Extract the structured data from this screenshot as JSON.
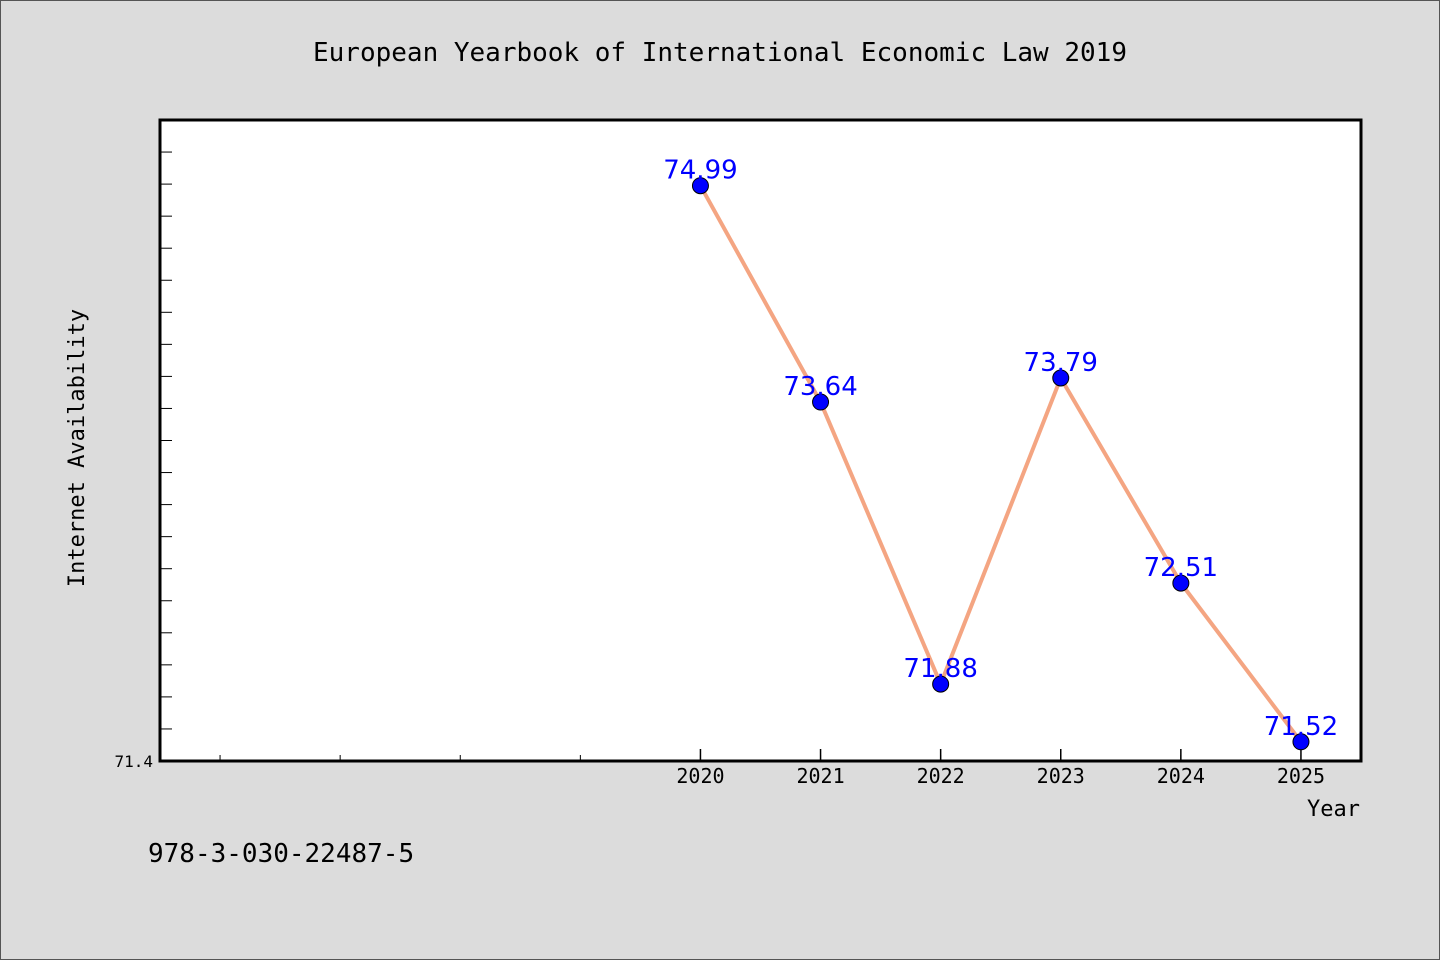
{
  "chart_data": {
    "type": "line",
    "title": "European Yearbook of International Economic Law 2019",
    "xlabel": "Year",
    "ylabel": "Internet Availability",
    "x": [
      2020,
      2021,
      2022,
      2023,
      2024,
      2025
    ],
    "x_tick_labels": [
      "2020",
      "2021",
      "2022",
      "2023",
      "2024",
      "2025"
    ],
    "xlim": [
      2015.5,
      2025.5
    ],
    "series": [
      {
        "values": [
          74.99,
          73.64,
          71.88,
          73.79,
          72.51,
          71.52
        ]
      }
    ],
    "data_labels": [
      "74.99",
      "73.64",
      "71.88",
      "73.79",
      "72.51",
      "71.52"
    ],
    "ylim": [
      71.4,
      75.4
    ],
    "y_min_label": "71.4",
    "grid": false,
    "line_color": "#f4a582",
    "marker_color": "#0000ff",
    "label_color": "#0000ff"
  },
  "footnote": "978-3-030-22487-5"
}
